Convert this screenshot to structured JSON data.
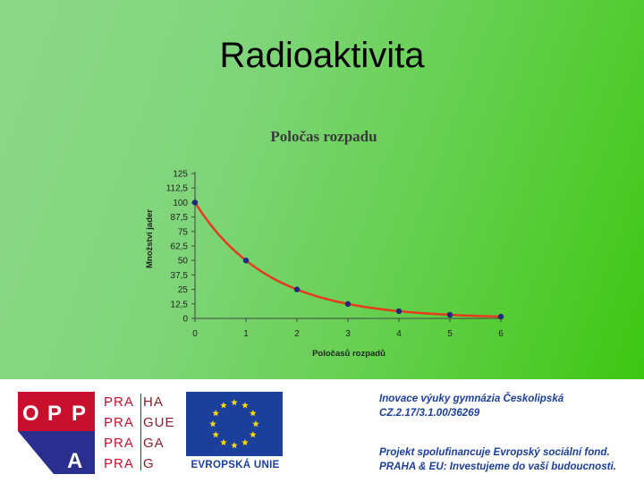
{
  "slide": {
    "title": "Radioaktivita"
  },
  "chart_data": {
    "type": "line",
    "title": "Poločas rozpadu",
    "xlabel": "Poločasů rozpadů",
    "ylabel": "Množství jader",
    "x": [
      0,
      1,
      2,
      3,
      4,
      5,
      6
    ],
    "series": [
      {
        "values": [
          100,
          50,
          25,
          12.5,
          6.25,
          3.125,
          1.5625
        ]
      }
    ],
    "xlim": [
      0,
      6
    ],
    "ylim": [
      0,
      125
    ],
    "yticks": [
      "0",
      "12,5",
      "25",
      "37,5",
      "50",
      "62,5",
      "75",
      "87,5",
      "100",
      "112,5",
      "125"
    ],
    "xticks": [
      "0",
      "1",
      "2",
      "3",
      "4",
      "5",
      "6"
    ],
    "grid": false,
    "line_color": "#e63a1e",
    "marker_color": "#1f2a7a"
  },
  "footer": {
    "logo_opp": {
      "letters": [
        "O",
        "P",
        "P",
        "A"
      ],
      "color": "#c8102e"
    },
    "logo_praha": {
      "left": [
        "PRA",
        "PRA",
        "PRA",
        "PRA"
      ],
      "right": [
        "HA",
        "GUE",
        "GA",
        "G"
      ]
    },
    "eu": {
      "label": "EVROPSKÁ UNIE",
      "flag_color": "#1b3f9a",
      "star_color": "#ffdd00"
    },
    "text_block1": [
      "Inovace výuky gymnázia Českolipská",
      "CZ.2.17/3.1.00/36269"
    ],
    "text_block2": [
      "Projekt spolufinancuje Evropský sociální fond.",
      "PRAHA & EU: Investujeme do vaší budoucnosti."
    ]
  }
}
